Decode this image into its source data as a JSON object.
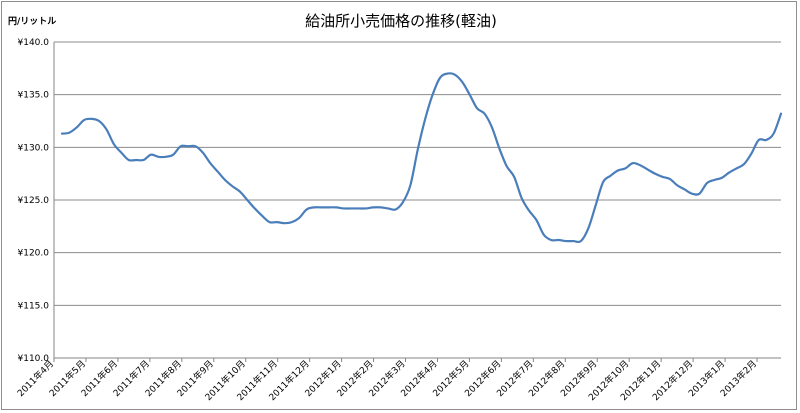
{
  "chart_data": {
    "type": "line",
    "title": "給油所小売価格の推移(軽油)",
    "unit_label": "円/リットル",
    "ylim": [
      110,
      140
    ],
    "ytick_labels": [
      "¥110.0",
      "¥115.0",
      "¥120.0",
      "¥125.0",
      "¥130.0",
      "¥135.0",
      "¥140.0"
    ],
    "ytick_values": [
      110,
      115,
      120,
      125,
      130,
      135,
      140
    ],
    "xtick_labels": [
      "2011年4月",
      "2011年5月",
      "2011年6月",
      "2011年7月",
      "2011年8月",
      "2011年9月",
      "2011年10月",
      "2011年11月",
      "2011年12月",
      "2012年1月",
      "2012年2月",
      "2012年3月",
      "2012年4月",
      "2012年5月",
      "2012年6月",
      "2012年7月",
      "2012年8月",
      "2012年9月",
      "2012年10月",
      "2012年11月",
      "2012年12月",
      "2013年1月",
      "2013年2月"
    ],
    "grid": true,
    "legend": "none",
    "line_color": "#4a7ebb",
    "series": [
      {
        "values": [
          131.3,
          131.4,
          131.9,
          132.6,
          132.7,
          132.5,
          131.7,
          130.3,
          129.5,
          128.8,
          128.8,
          128.8,
          129.3,
          129.1,
          129.1,
          129.3,
          130.1,
          130.1,
          130.1,
          129.5,
          128.5,
          127.7,
          126.9,
          126.3,
          125.8,
          125.0,
          124.2,
          123.5,
          122.9,
          122.9,
          122.8,
          122.9,
          123.3,
          124.1,
          124.3,
          124.3,
          124.3,
          124.3,
          124.2,
          124.2,
          124.2,
          124.2,
          124.3,
          124.3,
          124.2,
          124.1,
          124.8,
          126.4,
          129.8,
          132.7,
          135.0,
          136.6,
          137.0,
          136.9,
          136.2,
          135.0,
          133.7,
          133.2,
          131.9,
          129.9,
          128.2,
          127.2,
          125.2,
          124.0,
          123.1,
          121.7,
          121.2,
          121.2,
          121.1,
          121.1,
          121.1,
          122.3,
          124.5,
          126.7,
          127.3,
          127.8,
          128.0,
          128.5,
          128.3,
          127.9,
          127.5,
          127.2,
          127.0,
          126.4,
          126.0,
          125.6,
          125.6,
          126.6,
          126.9,
          127.1,
          127.6,
          128.0,
          128.4,
          129.4,
          130.7,
          130.7,
          131.3,
          133.2
        ]
      }
    ]
  }
}
